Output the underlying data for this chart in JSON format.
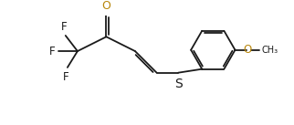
{
  "bg_color": "#ffffff",
  "line_color": "#1a1a1a",
  "label_color_oxygen": "#b8860b",
  "label_color_sulfur": "#1a1a1a",
  "label_color_fluorine": "#1a1a1a",
  "line_width": 1.3,
  "font_size": 8.5,
  "figsize": [
    3.22,
    1.37
  ],
  "dpi": 100,
  "xlim": [
    0,
    9.5
  ],
  "ylim": [
    0,
    4.0
  ]
}
